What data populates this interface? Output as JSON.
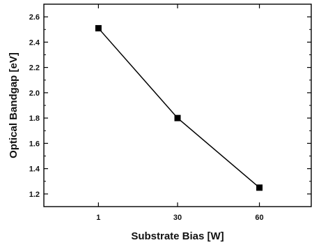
{
  "chart_data": {
    "type": "line",
    "title": "",
    "xlabel": "Substrate Bias [W]",
    "ylabel": "Optical Bandgap [eV]",
    "categories": [
      "1",
      "30",
      "60"
    ],
    "x": [
      1,
      30,
      60
    ],
    "series": [
      {
        "values": [
          2.51,
          1.8,
          1.25
        ],
        "marker": "square",
        "color": "#000000"
      }
    ],
    "y_ticks": [
      "1.2",
      "1.4",
      "1.6",
      "1.8",
      "2.0",
      "2.2",
      "2.4",
      "2.6"
    ],
    "x_ticks": [
      "1",
      "30",
      "60"
    ],
    "ylim": [
      1.1,
      2.7
    ],
    "xlim": [
      -19,
      79
    ],
    "grid": false,
    "legend": "none"
  }
}
